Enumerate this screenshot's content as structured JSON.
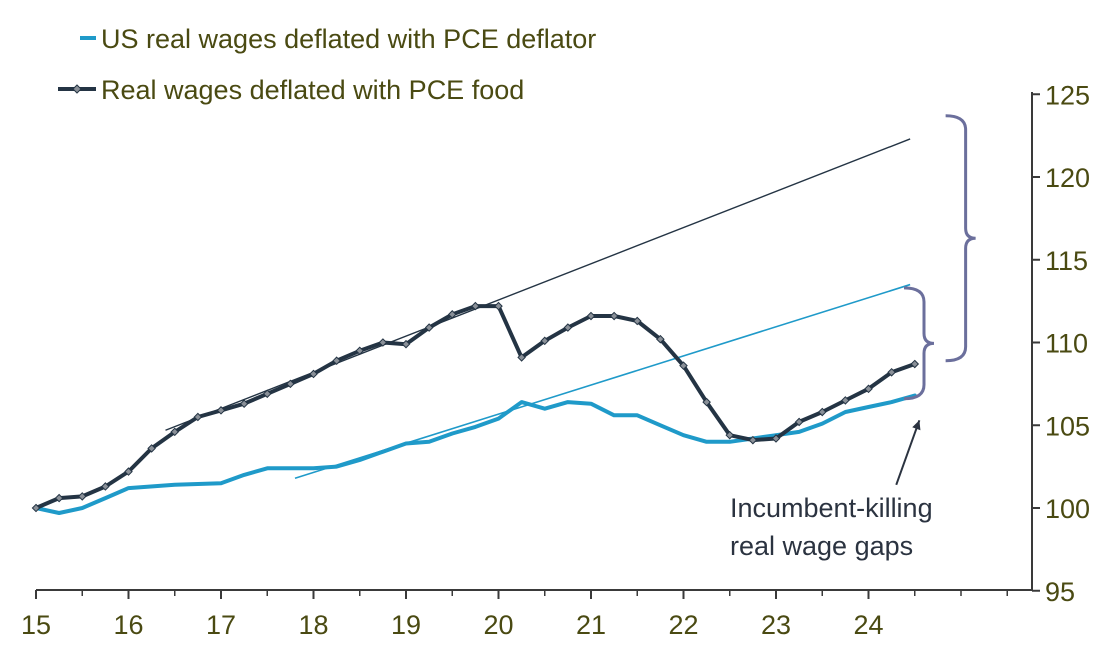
{
  "chart_data": {
    "type": "line",
    "title": "",
    "xlabel": "",
    "ylabel": "",
    "xlim": [
      15,
      25.7
    ],
    "ylim": [
      95,
      125
    ],
    "x_ticks": [
      "15",
      "16",
      "17",
      "18",
      "19",
      "20",
      "21",
      "22",
      "23",
      "24"
    ],
    "y_ticks": [
      "95",
      "100",
      "105",
      "110",
      "115",
      "120",
      "125"
    ],
    "y_axis_side": "right",
    "grid": false,
    "legend": {
      "placement": "top-left"
    },
    "colors": {
      "pce_deflator": "#1f9ac9",
      "pce_food": "#243444",
      "text": "#4a4a12",
      "brace": "#6b6f9c"
    },
    "series": [
      {
        "name": "US real wages deflated with PCE deflator",
        "key": "pce_deflator",
        "marker": "none",
        "points": [
          [
            15.0,
            100.0
          ],
          [
            15.25,
            99.7
          ],
          [
            15.5,
            100.0
          ],
          [
            15.75,
            100.6
          ],
          [
            16.0,
            101.2
          ],
          [
            16.5,
            101.4
          ],
          [
            17.0,
            101.5
          ],
          [
            17.25,
            102.0
          ],
          [
            17.5,
            102.4
          ],
          [
            18.0,
            102.4
          ],
          [
            18.25,
            102.5
          ],
          [
            18.5,
            102.9
          ],
          [
            18.75,
            103.4
          ],
          [
            19.0,
            103.9
          ],
          [
            19.25,
            104.0
          ],
          [
            19.5,
            104.5
          ],
          [
            19.75,
            104.9
          ],
          [
            20.0,
            105.4
          ],
          [
            20.25,
            106.4
          ],
          [
            20.5,
            106.0
          ],
          [
            20.75,
            106.4
          ],
          [
            21.0,
            106.3
          ],
          [
            21.25,
            105.6
          ],
          [
            21.5,
            105.6
          ],
          [
            21.75,
            105.0
          ],
          [
            22.0,
            104.4
          ],
          [
            22.25,
            104.0
          ],
          [
            22.5,
            104.0
          ],
          [
            22.75,
            104.2
          ],
          [
            23.0,
            104.4
          ],
          [
            23.25,
            104.6
          ],
          [
            23.5,
            105.1
          ],
          [
            23.75,
            105.8
          ],
          [
            24.0,
            106.1
          ],
          [
            24.25,
            106.4
          ],
          [
            24.5,
            106.8
          ]
        ]
      },
      {
        "name": "Real wages deflated with PCE food",
        "key": "pce_food",
        "marker": "diamond",
        "points": [
          [
            15.0,
            100.0
          ],
          [
            15.25,
            100.6
          ],
          [
            15.5,
            100.7
          ],
          [
            15.75,
            101.3
          ],
          [
            16.0,
            102.2
          ],
          [
            16.25,
            103.6
          ],
          [
            16.5,
            104.6
          ],
          [
            16.75,
            105.5
          ],
          [
            17.0,
            105.9
          ],
          [
            17.25,
            106.3
          ],
          [
            17.5,
            106.9
          ],
          [
            17.75,
            107.5
          ],
          [
            18.0,
            108.1
          ],
          [
            18.25,
            108.9
          ],
          [
            18.5,
            109.5
          ],
          [
            18.75,
            110.0
          ],
          [
            19.0,
            109.9
          ],
          [
            19.25,
            110.9
          ],
          [
            19.5,
            111.7
          ],
          [
            19.75,
            112.2
          ],
          [
            20.0,
            112.2
          ],
          [
            20.25,
            109.1
          ],
          [
            20.5,
            110.1
          ],
          [
            20.75,
            110.9
          ],
          [
            21.0,
            111.6
          ],
          [
            21.25,
            111.6
          ],
          [
            21.5,
            111.3
          ],
          [
            21.75,
            110.2
          ],
          [
            22.0,
            108.6
          ],
          [
            22.25,
            106.4
          ],
          [
            22.5,
            104.4
          ],
          [
            22.75,
            104.1
          ],
          [
            23.0,
            104.2
          ],
          [
            23.25,
            105.2
          ],
          [
            23.5,
            105.8
          ],
          [
            23.75,
            106.5
          ],
          [
            24.0,
            107.2
          ],
          [
            24.25,
            108.2
          ],
          [
            24.5,
            108.7
          ]
        ]
      }
    ],
    "trend_lines": [
      {
        "key": "pce_food",
        "from": [
          16.4,
          104.7
        ],
        "to": [
          24.45,
          122.3
        ]
      },
      {
        "key": "pce_deflator",
        "from": [
          17.8,
          101.8
        ],
        "to": [
          24.45,
          113.5
        ]
      }
    ],
    "brackets": [
      {
        "x": 25.05,
        "y_range": [
          108.9,
          123.7
        ]
      },
      {
        "x": 24.6,
        "y_range": [
          106.6,
          113.3
        ]
      }
    ],
    "annotation": {
      "lines": [
        "Incumbent-killing",
        "real wage gaps"
      ],
      "text_at": [
        22.4,
        100.0
      ],
      "arrow_from": [
        24.3,
        101.4
      ],
      "arrow_to": [
        24.55,
        105.3
      ]
    }
  }
}
